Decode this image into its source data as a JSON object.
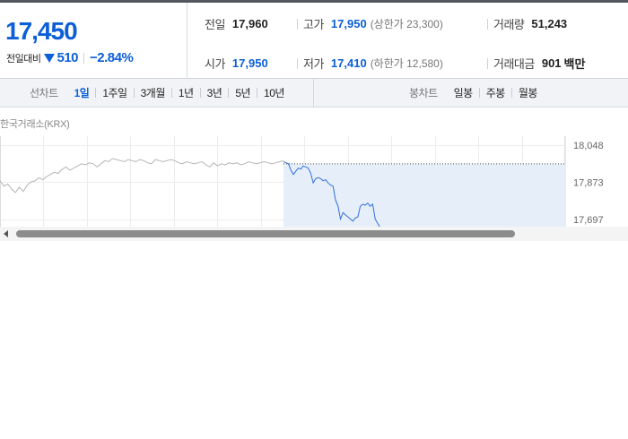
{
  "quote": {
    "price": "17,450",
    "change_label": "전일대비",
    "change_value": "510",
    "change_pct": "−2.84%",
    "prev_close_label": "전일",
    "prev_close": "17,960",
    "high_label": "고가",
    "high": "17,950",
    "upper_limit": "(상한가 23,300)",
    "volume_label": "거래량",
    "volume": "51,243",
    "open_label": "시가",
    "open": "17,950",
    "low_label": "저가",
    "low": "17,410",
    "lower_limit": "(하한가 12,580)",
    "amount_label": "거래대금",
    "amount": "901",
    "amount_unit": "백만"
  },
  "toolbar": {
    "line_chart_label": "선차트",
    "line_periods": [
      "1일",
      "1주일",
      "3개월",
      "1년",
      "3년",
      "5년",
      "10년"
    ],
    "candle_chart_label": "봉차트",
    "candle_periods": [
      "일봉",
      "주봉",
      "월봉"
    ]
  },
  "exchange_label": "한국거래소(KRX)",
  "chart": {
    "y_ticks": [
      "18,048",
      "17,873",
      "17,697"
    ],
    "prev_close_level": 17960,
    "colors": {
      "gray_line": "#b5b5b5",
      "blue_line": "#2f6fd6",
      "fill": "#e6eefa",
      "grid": "#ececec"
    }
  },
  "chart_data": {
    "type": "line",
    "title": "",
    "xlabel": "",
    "ylabel": "",
    "ylim": [
      17660,
      18090
    ],
    "y_ticks": [
      18048,
      17873,
      17697
    ],
    "grid": true,
    "series": [
      {
        "values": [
          17880,
          17855,
          17865,
          17840,
          17825,
          17850,
          17830,
          17860,
          17875,
          17880,
          17895,
          17885,
          17900,
          17910,
          17920,
          17915,
          17935,
          17945,
          17930,
          17940,
          17950,
          17960,
          17955,
          17965,
          17960,
          17945,
          17960,
          17975,
          17970,
          17985,
          17980,
          17975,
          17970,
          17980,
          17975,
          17970,
          17980,
          17975,
          17965,
          17960,
          17980,
          17975,
          17970,
          17975,
          17980,
          17975,
          17965,
          17960,
          17970,
          17965,
          17960,
          17965,
          17970,
          17955,
          17945,
          17965,
          17950,
          17960,
          17955,
          17965,
          17960,
          17965,
          17955,
          17960,
          17970,
          17965,
          17960,
          17965,
          17970,
          17965,
          17960,
          17965,
          17970,
          17975
        ]
      },
      {
        "values": [
          17970,
          17965,
          17960,
          17930,
          17910,
          17925,
          17940,
          17935,
          17950,
          17945,
          17940,
          17915,
          17870,
          17890,
          17895,
          17890,
          17880,
          17885,
          17870,
          17860,
          17855,
          17790,
          17760,
          17700,
          17730,
          17720,
          17710,
          17700,
          17690,
          17705,
          17710,
          17760,
          17770,
          17765,
          17775,
          17760,
          17770,
          17700,
          17680,
          17660,
          17655,
          17640,
          17650
        ]
      }
    ]
  }
}
